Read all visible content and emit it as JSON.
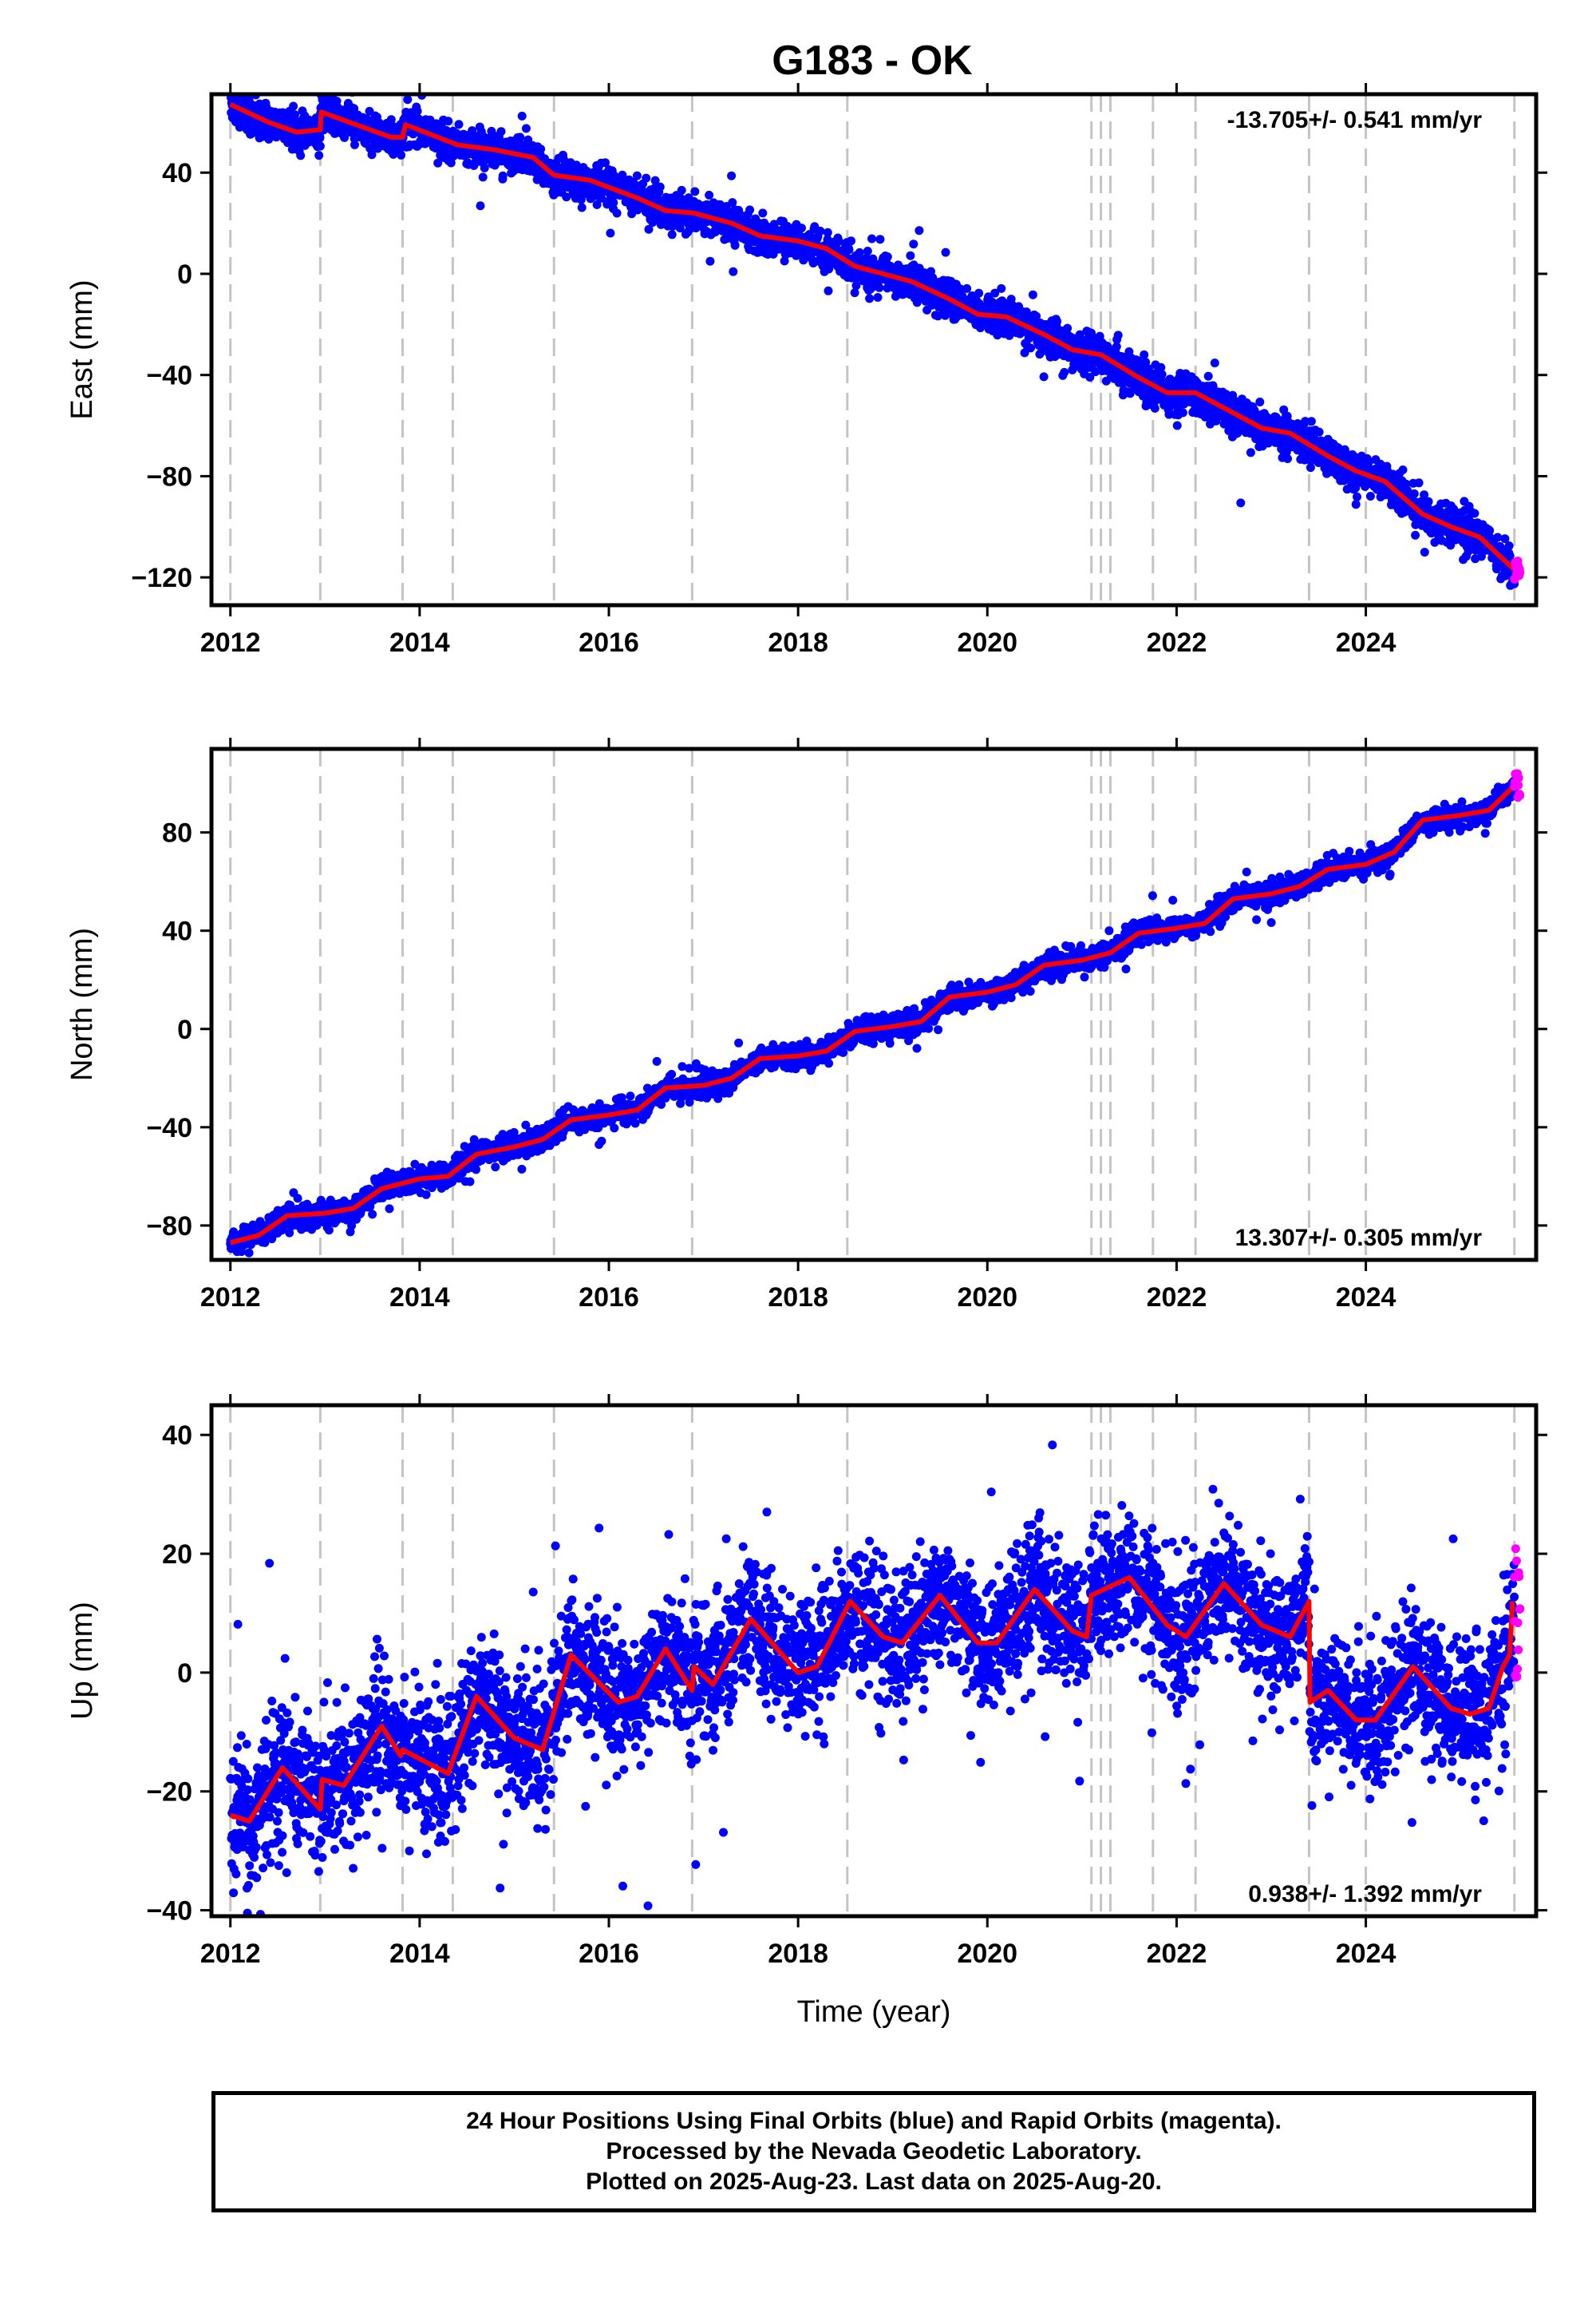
{
  "chart_data": {
    "type": "scatter",
    "title": "G183 - OK",
    "xlabel": "Time (year)",
    "xlim": [
      2011.8,
      2025.8
    ],
    "x_ticks": [
      2012,
      2014,
      2016,
      2018,
      2020,
      2022,
      2024
    ],
    "x_tick_labels": [
      "2012",
      "2014",
      "2016",
      "2018",
      "2020",
      "2022",
      "2024"
    ],
    "event_lines": [
      2012.0,
      2012.95,
      2013.82,
      2014.35,
      2015.42,
      2016.88,
      2018.52,
      2021.1,
      2021.2,
      2021.3,
      2021.75,
      2022.2,
      2023.4,
      2024.0,
      2025.57
    ],
    "series_styles": {
      "final_orbits": "#0000ff",
      "rapid_orbits": "#ff00ff",
      "model": "#ff0000"
    },
    "panels": [
      {
        "ylabel": "East (mm)",
        "ylim": [
          -131,
          71
        ],
        "y_ticks": [
          -120,
          -80,
          -40,
          0,
          40
        ],
        "y_tick_labels": [
          "−120",
          "−80",
          "−40",
          "0",
          "40"
        ],
        "rate_text": "-13.705+/- 0.541 mm/yr",
        "rate_position": "top-right",
        "model_line": [
          [
            2012.0,
            67
          ],
          [
            2012.4,
            60
          ],
          [
            2012.7,
            56
          ],
          [
            2012.95,
            57
          ],
          [
            2012.96,
            64
          ],
          [
            2013.4,
            58
          ],
          [
            2013.7,
            54
          ],
          [
            2013.82,
            54
          ],
          [
            2013.85,
            59
          ],
          [
            2014.4,
            51
          ],
          [
            2014.8,
            49
          ],
          [
            2015.2,
            46
          ],
          [
            2015.42,
            39
          ],
          [
            2015.8,
            37
          ],
          [
            2016.3,
            30
          ],
          [
            2016.6,
            25
          ],
          [
            2016.9,
            24
          ],
          [
            2017.3,
            20
          ],
          [
            2017.6,
            15
          ],
          [
            2018.0,
            13
          ],
          [
            2018.3,
            10
          ],
          [
            2018.6,
            3
          ],
          [
            2018.9,
            0
          ],
          [
            2019.2,
            -3
          ],
          [
            2019.6,
            -10
          ],
          [
            2019.9,
            -16
          ],
          [
            2020.2,
            -17
          ],
          [
            2020.6,
            -24
          ],
          [
            2020.9,
            -30
          ],
          [
            2021.2,
            -32
          ],
          [
            2021.6,
            -41
          ],
          [
            2021.9,
            -47
          ],
          [
            2022.2,
            -47
          ],
          [
            2022.6,
            -55
          ],
          [
            2022.9,
            -61
          ],
          [
            2023.2,
            -63
          ],
          [
            2023.6,
            -72
          ],
          [
            2023.9,
            -78
          ],
          [
            2024.2,
            -82
          ],
          [
            2024.6,
            -95
          ],
          [
            2024.9,
            -100
          ],
          [
            2025.2,
            -104
          ],
          [
            2025.57,
            -117
          ]
        ],
        "noise": 3.5,
        "rapid": {
          "start": 2025.57,
          "end": 2025.63,
          "center": -117,
          "spread": 8
        }
      },
      {
        "ylabel": "North (mm)",
        "ylim": [
          -94,
          114
        ],
        "y_ticks": [
          -80,
          -40,
          0,
          40,
          80
        ],
        "y_tick_labels": [
          "−80",
          "−40",
          "0",
          "40",
          "80"
        ],
        "rate_text": "13.307+/- 0.305 mm/yr",
        "rate_position": "bottom-right",
        "model_line": [
          [
            2012.0,
            -87
          ],
          [
            2012.3,
            -84
          ],
          [
            2012.6,
            -76
          ],
          [
            2013.0,
            -75
          ],
          [
            2013.3,
            -73
          ],
          [
            2013.6,
            -65
          ],
          [
            2014.0,
            -61
          ],
          [
            2014.3,
            -60
          ],
          [
            2014.6,
            -51
          ],
          [
            2015.0,
            -48
          ],
          [
            2015.3,
            -45
          ],
          [
            2015.6,
            -37
          ],
          [
            2016.0,
            -35
          ],
          [
            2016.3,
            -33
          ],
          [
            2016.6,
            -24
          ],
          [
            2017.0,
            -23
          ],
          [
            2017.3,
            -20
          ],
          [
            2017.6,
            -12
          ],
          [
            2018.0,
            -11
          ],
          [
            2018.3,
            -9
          ],
          [
            2018.6,
            -1
          ],
          [
            2019.0,
            1
          ],
          [
            2019.3,
            3
          ],
          [
            2019.6,
            13
          ],
          [
            2020.0,
            15
          ],
          [
            2020.3,
            18
          ],
          [
            2020.6,
            26
          ],
          [
            2021.0,
            28
          ],
          [
            2021.3,
            31
          ],
          [
            2021.6,
            39
          ],
          [
            2022.0,
            41
          ],
          [
            2022.3,
            43
          ],
          [
            2022.6,
            53
          ],
          [
            2023.0,
            55
          ],
          [
            2023.3,
            58
          ],
          [
            2023.6,
            65
          ],
          [
            2024.0,
            67
          ],
          [
            2024.3,
            72
          ],
          [
            2024.6,
            85
          ],
          [
            2025.0,
            87
          ],
          [
            2025.3,
            89
          ],
          [
            2025.57,
            99
          ]
        ],
        "noise": 2.2,
        "rapid": {
          "start": 2025.57,
          "end": 2025.63,
          "center": 99,
          "spread": 10
        }
      },
      {
        "ylabel": "Up (mm)",
        "ylim": [
          -41,
          45
        ],
        "y_ticks": [
          -40,
          -20,
          0,
          20,
          40
        ],
        "y_tick_labels": [
          "−40",
          "−20",
          "0",
          "20",
          "40"
        ],
        "rate_text": "0.938+/- 1.392 mm/yr",
        "rate_position": "bottom-right",
        "model_line": [
          [
            2012.0,
            -24
          ],
          [
            2012.2,
            -25
          ],
          [
            2012.55,
            -16
          ],
          [
            2012.95,
            -23
          ],
          [
            2012.97,
            -18
          ],
          [
            2013.2,
            -19
          ],
          [
            2013.6,
            -9
          ],
          [
            2013.8,
            -14
          ],
          [
            2013.82,
            -13
          ],
          [
            2014.3,
            -17
          ],
          [
            2014.6,
            -4
          ],
          [
            2015.0,
            -11
          ],
          [
            2015.3,
            -13
          ],
          [
            2015.6,
            3
          ],
          [
            2016.1,
            -5
          ],
          [
            2016.3,
            -4
          ],
          [
            2016.6,
            4
          ],
          [
            2016.88,
            -3
          ],
          [
            2016.9,
            1
          ],
          [
            2017.1,
            -2
          ],
          [
            2017.5,
            9
          ],
          [
            2018.0,
            0
          ],
          [
            2018.2,
            1
          ],
          [
            2018.55,
            12
          ],
          [
            2018.9,
            6
          ],
          [
            2019.1,
            5
          ],
          [
            2019.5,
            13
          ],
          [
            2019.9,
            5
          ],
          [
            2020.1,
            5
          ],
          [
            2020.5,
            14
          ],
          [
            2020.9,
            7
          ],
          [
            2021.05,
            6
          ],
          [
            2021.1,
            13
          ],
          [
            2021.5,
            16
          ],
          [
            2021.9,
            8
          ],
          [
            2022.1,
            6
          ],
          [
            2022.5,
            15
          ],
          [
            2022.9,
            8
          ],
          [
            2023.2,
            6
          ],
          [
            2023.4,
            12
          ],
          [
            2023.41,
            -5
          ],
          [
            2023.6,
            -3
          ],
          [
            2023.9,
            -8
          ],
          [
            2024.1,
            -8
          ],
          [
            2024.5,
            1
          ],
          [
            2024.9,
            -6
          ],
          [
            2025.1,
            -7
          ],
          [
            2025.3,
            -6
          ],
          [
            2025.45,
            1
          ],
          [
            2025.52,
            3
          ],
          [
            2025.55,
            12
          ]
        ],
        "noise": 5.5,
        "rapid": {
          "start": 2025.57,
          "end": 2025.63,
          "center": 10,
          "spread": 22
        }
      }
    ]
  },
  "footer": {
    "line1": "24 Hour Positions Using Final Orbits (blue) and Rapid Orbits (magenta).",
    "line2": "Processed by the Nevada Geodetic Laboratory.",
    "line3": "Plotted on 2025-Aug-23. Last data on 2025-Aug-20."
  }
}
